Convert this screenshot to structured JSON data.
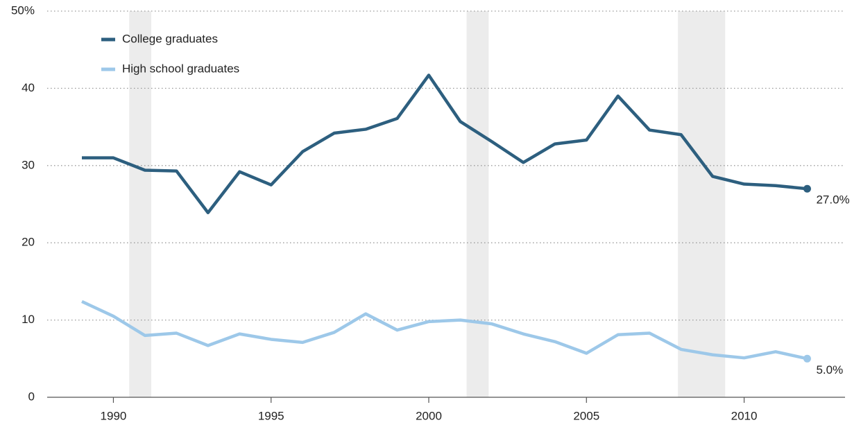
{
  "chart_data": {
    "type": "line",
    "x": [
      1989,
      1990,
      1991,
      1992,
      1993,
      1994,
      1995,
      1996,
      1997,
      1998,
      1999,
      2000,
      2001,
      2002,
      2003,
      2004,
      2005,
      2006,
      2007,
      2008,
      2009,
      2010,
      2011,
      2012
    ],
    "series": [
      {
        "name": "College graduates",
        "color": "#2d5f7f",
        "values": [
          31.0,
          31.0,
          29.4,
          29.3,
          23.9,
          29.2,
          27.5,
          31.8,
          34.2,
          34.7,
          36.1,
          41.7,
          35.7,
          33.1,
          30.4,
          32.8,
          33.3,
          39.0,
          34.6,
          34.0,
          28.6,
          27.6,
          27.4,
          27.0
        ],
        "value_labels": [
          null,
          null,
          null,
          null,
          null,
          null,
          null,
          null,
          null,
          null,
          null,
          null,
          null,
          null,
          null,
          null,
          null,
          null,
          null,
          null,
          null,
          null,
          null,
          "27.0%"
        ]
      },
      {
        "name": "High school graduates",
        "color": "#9dc8e9",
        "values": [
          12.4,
          10.5,
          8.0,
          8.3,
          6.7,
          8.2,
          7.5,
          7.1,
          8.4,
          10.8,
          8.7,
          9.8,
          10.0,
          9.5,
          8.2,
          7.2,
          5.7,
          8.1,
          8.3,
          6.2,
          5.5,
          5.1,
          5.9,
          5.0
        ],
        "value_labels": [
          null,
          null,
          null,
          null,
          null,
          null,
          null,
          null,
          null,
          null,
          null,
          null,
          null,
          null,
          null,
          null,
          null,
          null,
          null,
          null,
          null,
          null,
          null,
          "5.0%"
        ]
      }
    ],
    "shaded_regions": [
      [
        1990.5,
        1991.2
      ],
      [
        2001.2,
        2001.9
      ],
      [
        2007.9,
        2009.4
      ]
    ],
    "xlim": [
      1987.9,
      2013.2
    ],
    "xticks": [
      1990,
      1995,
      2000,
      2005,
      2010
    ],
    "ylim": [
      0,
      50
    ],
    "yticks": [
      0,
      10,
      20,
      30,
      40,
      {
        "value": 50,
        "label": "50%"
      }
    ],
    "grid": true,
    "legend": "top-left"
  }
}
